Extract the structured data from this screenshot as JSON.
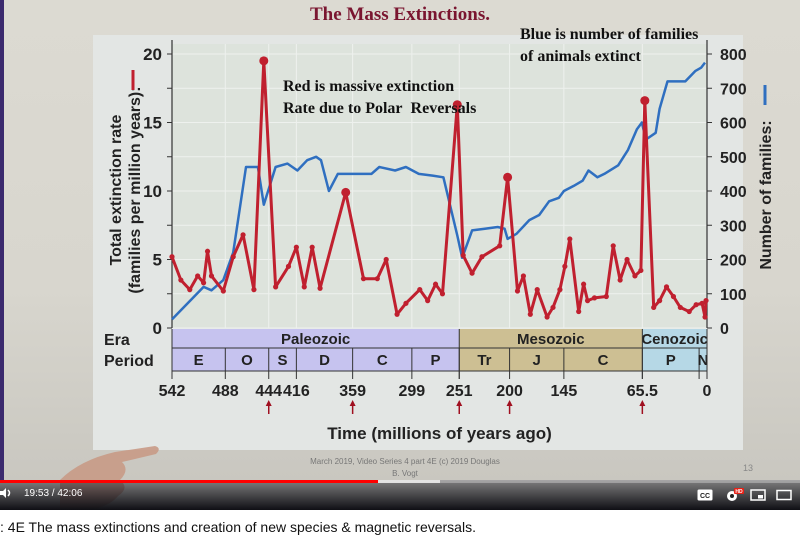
{
  "slide": {
    "title": "The Mass Extinctions.",
    "annotation_red_line1": "Red is massive extinction",
    "annotation_red_line2a": "Rate due to Polar",
    "annotation_red_line2b": "Reversals",
    "annotation_blue_line1": "Blue is number of families",
    "annotation_blue_line2": "of animals extinct",
    "footer_line1": "March 2019, Video Series 4 part 4E (c) 2019 Douglas",
    "footer_line2": "B. Vogt",
    "page_number": "13"
  },
  "chart_data": {
    "type": "line",
    "title": "The Mass Extinctions.",
    "xlabel": "Time (millions of years ago)",
    "ylabel_left": "Total extinction rate (families per million years): —",
    "ylabel_right": "Number of families: —",
    "xlim": [
      542,
      0
    ],
    "ylim_left": [
      0,
      20
    ],
    "ylim_right": [
      0,
      800
    ],
    "yticks_left": [
      0,
      5,
      10,
      15,
      20
    ],
    "yticks_right": [
      0,
      100,
      200,
      300,
      400,
      500,
      600,
      700,
      800
    ],
    "xticks": [
      "542",
      "488",
      "444",
      "416",
      "359",
      "299",
      "251",
      "200",
      "145",
      "65.5",
      "0"
    ],
    "xtick_values": [
      542,
      488,
      444,
      416,
      359,
      299,
      251,
      200,
      145,
      65.5,
      0
    ],
    "mass_extinction_arrows": [
      444,
      359,
      251,
      200,
      65.5
    ],
    "grid": true,
    "series": [
      {
        "name": "Total extinction rate",
        "color": "#c0202f",
        "axis": "left",
        "marker": "circle",
        "points": [
          [
            542,
            5.2
          ],
          [
            533,
            3.5
          ],
          [
            524,
            2.8
          ],
          [
            516,
            3.8
          ],
          [
            510,
            3.3
          ],
          [
            506,
            5.6
          ],
          [
            502,
            3.8
          ],
          [
            490,
            2.7
          ],
          [
            480,
            5.2
          ],
          [
            470,
            6.8
          ],
          [
            459,
            2.8
          ],
          [
            449,
            19.5
          ],
          [
            437,
            3.0
          ],
          [
            424,
            4.5
          ],
          [
            416,
            5.9
          ],
          [
            408,
            3.0
          ],
          [
            400,
            5.9
          ],
          [
            392,
            2.9
          ],
          [
            366,
            9.9
          ],
          [
            348,
            3.6
          ],
          [
            334,
            3.6
          ],
          [
            325,
            5.0
          ],
          [
            314,
            1.0
          ],
          [
            305,
            1.8
          ],
          [
            291,
            2.8
          ],
          [
            283,
            2.0
          ],
          [
            275,
            3.2
          ],
          [
            268,
            2.5
          ],
          [
            253,
            16.3
          ],
          [
            247,
            5.3
          ],
          [
            238,
            4.0
          ],
          [
            228,
            5.2
          ],
          [
            210,
            6.0
          ],
          [
            202,
            11.0
          ],
          [
            192,
            2.7
          ],
          [
            186,
            3.8
          ],
          [
            179,
            1.0
          ],
          [
            172,
            2.8
          ],
          [
            162,
            0.8
          ],
          [
            156,
            1.5
          ],
          [
            149,
            2.8
          ],
          [
            144,
            4.5
          ],
          [
            139,
            6.5
          ],
          [
            130,
            1.2
          ],
          [
            125,
            3.2
          ],
          [
            121,
            2.0
          ],
          [
            114,
            2.2
          ],
          [
            102,
            2.3
          ],
          [
            95,
            6.0
          ],
          [
            88,
            3.5
          ],
          [
            81,
            5.0
          ],
          [
            73,
            3.8
          ],
          [
            67,
            4.2
          ],
          [
            63,
            16.6
          ],
          [
            54,
            1.5
          ],
          [
            48,
            2.0
          ],
          [
            41,
            3.0
          ],
          [
            34,
            2.3
          ],
          [
            27,
            1.5
          ],
          [
            18,
            1.2
          ],
          [
            11,
            1.7
          ],
          [
            5,
            1.8
          ],
          [
            2,
            0.8
          ],
          [
            1,
            2.0
          ]
        ]
      },
      {
        "name": "Number of families",
        "color": "#2f6fc0",
        "axis": "right",
        "points": [
          [
            542,
            25
          ],
          [
            510,
            120
          ],
          [
            502,
            110
          ],
          [
            490,
            140
          ],
          [
            480,
            220
          ],
          [
            467,
            470
          ],
          [
            455,
            470
          ],
          [
            449,
            360
          ],
          [
            437,
            470
          ],
          [
            425,
            480
          ],
          [
            415,
            460
          ],
          [
            405,
            490
          ],
          [
            396,
            500
          ],
          [
            391,
            490
          ],
          [
            383,
            400
          ],
          [
            374,
            450
          ],
          [
            352,
            450
          ],
          [
            340,
            450
          ],
          [
            332,
            470
          ],
          [
            316,
            460
          ],
          [
            305,
            470
          ],
          [
            292,
            450
          ],
          [
            278,
            445
          ],
          [
            267,
            440
          ],
          [
            253,
            270
          ],
          [
            248,
            205
          ],
          [
            238,
            285
          ],
          [
            225,
            290
          ],
          [
            212,
            295
          ],
          [
            205,
            290
          ],
          [
            202,
            260
          ],
          [
            193,
            275
          ],
          [
            180,
            315
          ],
          [
            170,
            330
          ],
          [
            160,
            370
          ],
          [
            150,
            380
          ],
          [
            145,
            400
          ],
          [
            135,
            415
          ],
          [
            126,
            430
          ],
          [
            120,
            460
          ],
          [
            111,
            440
          ],
          [
            104,
            450
          ],
          [
            90,
            475
          ],
          [
            80,
            520
          ],
          [
            71,
            580
          ],
          [
            66,
            600
          ],
          [
            62,
            550
          ],
          [
            52,
            570
          ],
          [
            48,
            640
          ],
          [
            40,
            720
          ],
          [
            30,
            720
          ],
          [
            22,
            720
          ],
          [
            12,
            750
          ],
          [
            6,
            760
          ],
          [
            2,
            775
          ]
        ]
      }
    ],
    "eras": [
      {
        "name": "Paleozoic",
        "from": 542,
        "to": 251,
        "color": "#c6c3ef"
      },
      {
        "name": "Mesozoic",
        "from": 251,
        "to": 65.5,
        "color": "#cdbf93"
      },
      {
        "name": "Cenozoic",
        "from": 65.5,
        "to": 0,
        "color": "#b6d8e6"
      }
    ],
    "periods": [
      {
        "name": "E",
        "from": 542,
        "to": 488
      },
      {
        "name": "O",
        "from": 488,
        "to": 444
      },
      {
        "name": "S",
        "from": 444,
        "to": 416
      },
      {
        "name": "D",
        "from": 416,
        "to": 359
      },
      {
        "name": "C",
        "from": 359,
        "to": 299
      },
      {
        "name": "P",
        "from": 299,
        "to": 251
      },
      {
        "name": "Tr",
        "from": 251,
        "to": 200
      },
      {
        "name": "J",
        "from": 200,
        "to": 145
      },
      {
        "name": "C",
        "from": 145,
        "to": 65.5
      },
      {
        "name": "P",
        "from": 65.5,
        "to": 8
      },
      {
        "name": "N",
        "from": 8,
        "to": 0
      }
    ],
    "row_labels": {
      "era": "Era",
      "period": "Period"
    }
  },
  "player": {
    "current_time": "19:53",
    "duration": "42:06",
    "time_display": "19:53 / 42:06",
    "progress_percent": 47.3,
    "buffered_percent": 55.0,
    "progress_color": "#ff0000",
    "hd_badge": "HD",
    "cc_label": "CC"
  },
  "video_title": ": 4E The mass extinctions and creation of new species & magnetic reversals."
}
